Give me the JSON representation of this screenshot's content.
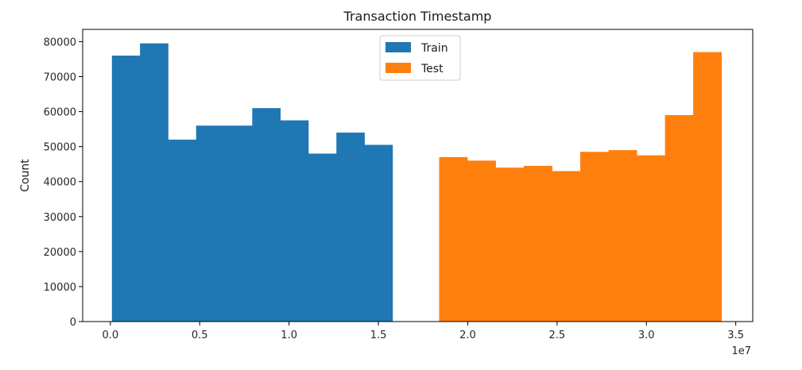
{
  "chart_data": {
    "type": "bar",
    "title": "Transaction Timestamp",
    "xlabel": "",
    "ylabel": "Count",
    "x_offset_text": "1e7",
    "xlim": [
      -1550000,
      35950000
    ],
    "ylim": [
      0,
      83500
    ],
    "xticks": [
      0,
      5000000,
      10000000,
      15000000,
      20000000,
      25000000,
      30000000,
      35000000
    ],
    "xtick_labels": [
      "0.0",
      "0.5",
      "1.0",
      "1.5",
      "2.0",
      "2.5",
      "3.0",
      "3.5"
    ],
    "yticks": [
      0,
      10000,
      20000,
      30000,
      40000,
      50000,
      60000,
      70000,
      80000
    ],
    "ytick_labels": [
      "0",
      "10000",
      "20000",
      "30000",
      "40000",
      "50000",
      "60000",
      "70000",
      "80000"
    ],
    "grid": false,
    "legend_position": "top-center",
    "series": [
      {
        "name": "Train",
        "color": "#1f77b4",
        "bin_edges": [
          86400,
          1660000,
          3230000,
          4800000,
          6370000,
          7940000,
          9510000,
          11080000,
          12650000,
          14220000,
          15790000
        ],
        "values": [
          76000,
          79500,
          52000,
          56000,
          56000,
          61000,
          57500,
          48000,
          54000,
          50500
        ]
      },
      {
        "name": "Test",
        "color": "#ff7f0e",
        "bin_edges": [
          18400000,
          19980000,
          21560000,
          23140000,
          24720000,
          26300000,
          27880000,
          29460000,
          31040000,
          32620000,
          34200000
        ],
        "values": [
          47000,
          46000,
          44000,
          44500,
          43000,
          48500,
          49000,
          47500,
          59000,
          77000
        ]
      }
    ]
  }
}
